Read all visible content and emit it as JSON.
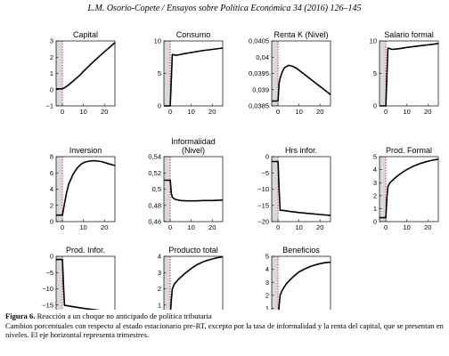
{
  "header": "L.M. Osorio-Copete / Ensayos sobre Política Económica 34 (2016) 126–145",
  "caption": {
    "label": "Figura 6.",
    "title": "Reacción a un choque no anticipado de política tributaria",
    "note": "Cambios porcentuales con respecto al estado estacionario pre-RT, excepto por la tasa de informalidad y la renta del capital, que se presentan en niveles. El eje horizontal  representa trimestres."
  },
  "chart_data": [
    {
      "type": "line",
      "title": "Capital",
      "xlim": [
        -3,
        25
      ],
      "ylim": [
        -1,
        3
      ],
      "xticks": [
        "0",
        "10",
        "20"
      ],
      "yticks": [
        "-1",
        "0",
        "1",
        "2",
        "3"
      ],
      "x": [
        -3,
        0,
        1,
        3,
        5,
        8,
        10,
        12,
        15,
        18,
        20,
        22,
        24,
        25
      ],
      "y": [
        0.05,
        0.05,
        0.12,
        0.3,
        0.52,
        0.85,
        1.12,
        1.38,
        1.75,
        2.1,
        2.33,
        2.55,
        2.78,
        2.9
      ]
    },
    {
      "type": "line",
      "title": "Consumo",
      "xlim": [
        -3,
        25
      ],
      "ylim": [
        0,
        10
      ],
      "xticks": [
        "0",
        "10",
        "20"
      ],
      "yticks": [
        "0",
        "5",
        "10"
      ],
      "x": [
        -3,
        0,
        0.5,
        1,
        3,
        6,
        10,
        15,
        20,
        25
      ],
      "y": [
        0,
        0,
        4,
        7.9,
        7.8,
        8.0,
        8.2,
        8.5,
        8.7,
        8.9
      ]
    },
    {
      "type": "line",
      "title": "Renta K (Nivel)",
      "xlim": [
        -3,
        25
      ],
      "ylim": [
        0.0385,
        0.0405
      ],
      "xticks": [
        "0",
        "10",
        "20"
      ],
      "yticks": [
        "0,0385",
        "0,039",
        "0,0395",
        "0,04",
        "0,0405"
      ],
      "x": [
        -3,
        0,
        0.5,
        1,
        2,
        3,
        5,
        7,
        9,
        11,
        13,
        15,
        18,
        21,
        24,
        25
      ],
      "y": [
        0.03865,
        0.03865,
        0.0392,
        0.03935,
        0.03955,
        0.03967,
        0.03975,
        0.03972,
        0.03965,
        0.03955,
        0.03945,
        0.03935,
        0.0392,
        0.03905,
        0.0389,
        0.03885
      ]
    },
    {
      "type": "line",
      "title": "Salario formal",
      "xlim": [
        -3,
        25
      ],
      "ylim": [
        0,
        10
      ],
      "xticks": [
        "0",
        "10",
        "20"
      ],
      "yticks": [
        "0",
        "5",
        "10"
      ],
      "x": [
        -3,
        0,
        0.5,
        1,
        3,
        6,
        10,
        15,
        20,
        25
      ],
      "y": [
        0,
        0,
        4.5,
        8.9,
        8.7,
        8.8,
        9.0,
        9.2,
        9.4,
        9.6
      ]
    },
    {
      "type": "line",
      "title": "Inversion",
      "xlim": [
        -3,
        25
      ],
      "ylim": [
        0,
        8
      ],
      "xticks": [
        "0",
        "10",
        "20"
      ],
      "yticks": [
        "0",
        "2",
        "4",
        "6",
        "8"
      ],
      "x": [
        -3,
        0,
        1,
        2,
        3,
        5,
        7,
        9,
        11,
        13,
        15,
        17,
        19,
        21,
        23,
        25
      ],
      "y": [
        0.8,
        0.8,
        2.2,
        3.6,
        4.6,
        5.8,
        6.6,
        7.1,
        7.35,
        7.45,
        7.5,
        7.45,
        7.35,
        7.2,
        7.05,
        6.9
      ]
    },
    {
      "type": "line",
      "title": "Informalidad (Nivel)",
      "xlim": [
        -3,
        25
      ],
      "ylim": [
        0.46,
        0.54
      ],
      "xticks": [
        "0",
        "10",
        "20"
      ],
      "yticks": [
        "0,46",
        "0,48",
        "0,5",
        "0,52",
        "0,54"
      ],
      "x": [
        -3,
        0,
        0.5,
        1,
        2,
        3,
        5,
        8,
        12,
        16,
        20,
        25
      ],
      "y": [
        0.511,
        0.511,
        0.495,
        0.49,
        0.488,
        0.487,
        0.486,
        0.4855,
        0.4855,
        0.486,
        0.486,
        0.4865
      ]
    },
    {
      "type": "line",
      "title": "Hrs infor.",
      "xlim": [
        -3,
        25
      ],
      "ylim": [
        -20,
        0
      ],
      "xticks": [
        "0",
        "10",
        "20"
      ],
      "yticks": [
        "-20",
        "-15",
        "-10",
        "-5",
        "0"
      ],
      "x": [
        -3,
        0,
        0.5,
        1,
        3,
        6,
        10,
        15,
        20,
        25
      ],
      "y": [
        -1.5,
        -1.5,
        -10,
        -16.5,
        -16.6,
        -16.9,
        -17.2,
        -17.5,
        -17.8,
        -18.1
      ]
    },
    {
      "type": "line",
      "title": "Prod. Formal",
      "xlim": [
        -3,
        25
      ],
      "ylim": [
        0,
        5
      ],
      "xticks": [
        "0",
        "10",
        "20"
      ],
      "yticks": [
        "0",
        "1",
        "2",
        "3",
        "4",
        "5"
      ],
      "x": [
        -3,
        0,
        0.5,
        1,
        2,
        4,
        7,
        10,
        13,
        16,
        19,
        22,
        25
      ],
      "y": [
        0.3,
        0.3,
        1.8,
        2.7,
        3.0,
        3.3,
        3.7,
        4.0,
        4.25,
        4.45,
        4.6,
        4.72,
        4.8
      ]
    },
    {
      "type": "line",
      "title": "Prod. Infor.",
      "xlim": [
        -3,
        25
      ],
      "ylim": [
        -20,
        0
      ],
      "xticks": [
        "0",
        "10",
        "20"
      ],
      "yticks": [
        "-20",
        "-15",
        "-10",
        "-5",
        "0"
      ],
      "x": [
        -3,
        0,
        0.5,
        1,
        3,
        6,
        10,
        15,
        20,
        25
      ],
      "y": [
        -1,
        -1,
        -9,
        -15.1,
        -15.3,
        -15.6,
        -16.0,
        -16.4,
        -16.8,
        -17.1
      ]
    },
    {
      "type": "line",
      "title": "Producto total",
      "xlim": [
        -3,
        25
      ],
      "ylim": [
        0,
        4
      ],
      "xticks": [
        "0",
        "10",
        "20"
      ],
      "yticks": [
        "0",
        "1",
        "2",
        "3",
        "4"
      ],
      "x": [
        -3,
        0,
        0.5,
        1,
        2,
        4,
        7,
        10,
        13,
        16,
        19,
        22,
        25
      ],
      "y": [
        0.3,
        0.3,
        1.3,
        2.0,
        2.3,
        2.6,
        2.95,
        3.25,
        3.5,
        3.68,
        3.8,
        3.9,
        3.97
      ]
    },
    {
      "type": "line",
      "title": "Beneficios",
      "xlim": [
        -3,
        25
      ],
      "ylim": [
        0,
        5
      ],
      "xticks": [
        "0",
        "10",
        "20"
      ],
      "yticks": [
        "0",
        "1",
        "2",
        "3",
        "4",
        "5"
      ],
      "x": [
        -3,
        0,
        0.5,
        1,
        2,
        4,
        7,
        10,
        13,
        16,
        19,
        22,
        25
      ],
      "y": [
        0.2,
        0.2,
        1.2,
        2.0,
        2.4,
        2.9,
        3.4,
        3.8,
        4.05,
        4.25,
        4.4,
        4.5,
        4.55
      ]
    }
  ]
}
